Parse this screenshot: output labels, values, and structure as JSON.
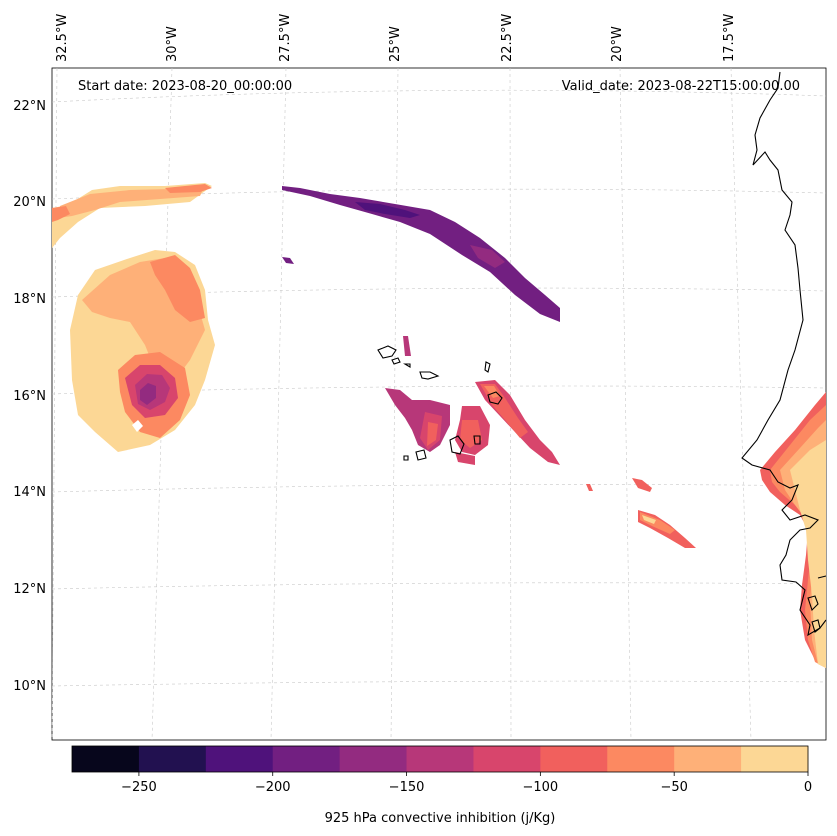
{
  "map": {
    "start_date": "Start date: 2023-08-20_00:00:00",
    "valid_date": "Valid_date: 2023-08-22T15:00:00.00",
    "lon_labels": [
      "32.5°W",
      "30°W",
      "27.5°W",
      "25°W",
      "22.5°W",
      "20°W",
      "17.5°W"
    ],
    "lat_labels": [
      "22°N",
      "20°N",
      "18°N",
      "16°N",
      "14°N",
      "12°N",
      "10°N"
    ],
    "grid_lines": true,
    "coastline_color": "#000000"
  },
  "colorbar": {
    "label": "925 hPa convective inhibition (j/Kg)",
    "tick_labels": [
      "−250",
      "−200",
      "−150",
      "−100",
      "−50",
      "0"
    ],
    "levels": [
      -275,
      -250,
      -225,
      -200,
      -175,
      -150,
      -125,
      -100,
      -75,
      -50,
      -25,
      0
    ],
    "colors": [
      "#07061c",
      "#221150",
      "#4f127b",
      "#721f81",
      "#932b80",
      "#b73779",
      "#d8456c",
      "#f1605d",
      "#fc8961",
      "#feb078",
      "#fcd795"
    ]
  }
}
